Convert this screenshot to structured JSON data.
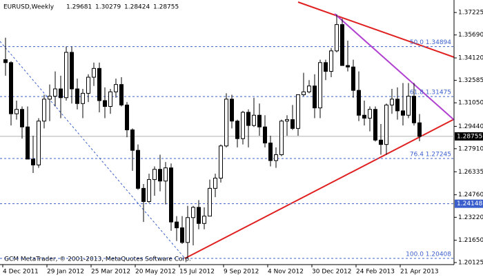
{
  "chart_data": {
    "type": "candlestick",
    "title": "EURUSD,Weekly",
    "footer": "GCM MetaTrader, © 2001-2013, MetaQuotes Software Corp.",
    "x": [
      "4 Dec 2011",
      null,
      null,
      null,
      null,
      null,
      null,
      null,
      "29 Jan 2012",
      null,
      null,
      null,
      null,
      null,
      null,
      null,
      "25 Mar 2012",
      null,
      null,
      null,
      null,
      null,
      null,
      null,
      "20 May 2012",
      null,
      null,
      null,
      null,
      null,
      null,
      null,
      "15 Jul 2012",
      null,
      null,
      null,
      null,
      null,
      null,
      null,
      "9 Sep 2012",
      null,
      null,
      null,
      null,
      null,
      null,
      null,
      "4 Nov 2012",
      null,
      null,
      null,
      null,
      null,
      null,
      null,
      "30 Dec 2012",
      null,
      null,
      null,
      null,
      null,
      null,
      null,
      "24 Feb 2013",
      null,
      null,
      null,
      null,
      null,
      null,
      null,
      "21 Apr 2013",
      null,
      null,
      null
    ],
    "open": [
      1.34,
      1.338,
      1.303,
      1.306,
      1.294,
      1.272,
      1.268,
      1.298,
      1.313,
      1.315,
      1.32,
      1.314,
      1.345,
      1.32,
      1.31,
      1.317,
      1.328,
      1.334,
      1.312,
      1.308,
      1.318,
      1.323,
      1.309,
      1.292,
      1.278,
      1.252,
      1.243,
      1.258,
      1.265,
      1.257,
      1.266,
      1.229,
      1.225,
      1.215,
      1.232,
      1.239,
      1.228,
      1.233,
      1.252,
      1.259,
      1.281,
      1.313,
      1.298,
      1.286,
      1.304,
      1.295,
      1.302,
      1.294,
      1.283,
      1.271,
      1.275,
      1.298,
      1.299,
      1.293,
      1.316,
      1.318,
      1.322,
      1.307,
      1.338,
      1.332,
      1.346,
      1.364,
      1.336,
      1.335,
      1.319,
      1.302,
      1.3,
      1.306,
      1.285,
      1.282,
      1.309,
      1.313,
      1.305,
      1.302,
      1.315,
      1.29681
    ],
    "high": [
      1.355,
      1.339,
      1.312,
      1.308,
      1.308,
      1.288,
      1.3,
      1.316,
      1.323,
      1.332,
      1.329,
      1.349,
      1.349,
      1.327,
      1.32,
      1.33,
      1.338,
      1.338,
      1.321,
      1.32,
      1.327,
      1.328,
      1.311,
      1.293,
      1.282,
      1.255,
      1.262,
      1.267,
      1.275,
      1.27,
      1.269,
      1.233,
      1.233,
      1.24,
      1.24,
      1.244,
      1.239,
      1.258,
      1.262,
      1.282,
      1.317,
      1.316,
      1.299,
      1.305,
      1.306,
      1.314,
      1.31,
      1.302,
      1.288,
      1.28,
      1.299,
      1.302,
      1.309,
      1.316,
      1.331,
      1.326,
      1.33,
      1.34,
      1.34,
      1.348,
      1.371,
      1.368,
      1.353,
      1.34,
      1.332,
      1.312,
      1.308,
      1.308,
      1.296,
      1.31,
      1.32,
      1.321,
      1.324,
      1.324,
      1.324,
      1.30279
    ],
    "low": [
      1.329,
      1.295,
      1.299,
      1.286,
      1.272,
      1.2625,
      1.266,
      1.293,
      1.298,
      1.308,
      1.3,
      1.312,
      1.31,
      1.306,
      1.3,
      1.311,
      1.322,
      1.304,
      1.3,
      1.303,
      1.314,
      1.308,
      1.287,
      1.264,
      1.251,
      1.229,
      1.242,
      1.247,
      1.25,
      1.241,
      1.223,
      1.216,
      1.214,
      1.204,
      1.213,
      1.224,
      1.224,
      1.233,
      1.246,
      1.256,
      1.28,
      1.293,
      1.28,
      1.282,
      1.28,
      1.294,
      1.288,
      1.28,
      1.267,
      1.266,
      1.274,
      1.288,
      1.292,
      1.288,
      1.315,
      1.317,
      1.3,
      1.3,
      1.326,
      1.328,
      1.345,
      1.336,
      1.332,
      1.314,
      1.298,
      1.295,
      1.291,
      1.284,
      1.275,
      1.275,
      1.303,
      1.299,
      1.295,
      1.3,
      1.295,
      1.28424
    ],
    "close": [
      1.338,
      1.303,
      1.306,
      1.294,
      1.272,
      1.268,
      1.298,
      1.313,
      1.315,
      1.32,
      1.314,
      1.345,
      1.32,
      1.31,
      1.317,
      1.328,
      1.334,
      1.312,
      1.308,
      1.318,
      1.323,
      1.309,
      1.292,
      1.278,
      1.252,
      1.243,
      1.258,
      1.265,
      1.257,
      1.266,
      1.229,
      1.225,
      1.215,
      1.232,
      1.239,
      1.228,
      1.233,
      1.252,
      1.259,
      1.281,
      1.313,
      1.298,
      1.286,
      1.304,
      1.295,
      1.302,
      1.294,
      1.283,
      1.271,
      1.275,
      1.298,
      1.299,
      1.293,
      1.316,
      1.318,
      1.322,
      1.307,
      1.338,
      1.332,
      1.346,
      1.364,
      1.336,
      1.335,
      1.319,
      1.302,
      1.3,
      1.306,
      1.285,
      1.282,
      1.309,
      1.313,
      1.305,
      1.302,
      1.315,
      1.2968,
      1.28755
    ],
    "ylim": [
      1.2008,
      1.3808
    ],
    "yticks": [
      1.37225,
      {
        "value": 1.3569,
        "label": "1.35690"
      },
      {
        "value": 1.3412,
        "label": "1.34120"
      },
      1.32585,
      {
        "value": 1.3105,
        "label": "1.31050"
      },
      {
        "value": 1.2944,
        "label": "1.29440"
      },
      {
        "value": 1.2791,
        "label": "1.27910"
      },
      1.26335,
      {
        "value": 1.2476,
        "label": "1.24760"
      },
      {
        "value": 1.2322,
        "label": "1.23220"
      },
      {
        "value": 1.2165,
        "label": "1.21650"
      },
      1.20125
    ],
    "fib_levels": [
      {
        "label": "50.0 1.34894",
        "value": 1.34894
      },
      {
        "label": "61.8 1.31475",
        "value": 1.31475
      },
      {
        "label": "76.4 1.27245",
        "value": 1.27245
      },
      {
        "label": "100.0 1.20408",
        "value": 1.20408
      }
    ],
    "hlines": [
      1.24148
    ]
  }
}
